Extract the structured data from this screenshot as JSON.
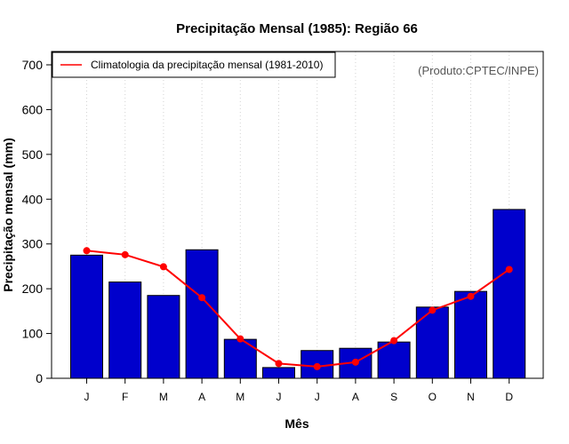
{
  "chart_data": {
    "type": "bar",
    "title": "Precipitação Mensal (1985): Região 66",
    "xlabel": "Mês",
    "ylabel": "Precipitação mensal (mm)",
    "categories": [
      "J",
      "F",
      "M",
      "A",
      "M",
      "J",
      "J",
      "A",
      "S",
      "O",
      "N",
      "D"
    ],
    "ylim": [
      0,
      700
    ],
    "yticks": [
      0,
      100,
      200,
      300,
      400,
      500,
      600,
      700
    ],
    "series": [
      {
        "name": "Precipitação mensal (1985)",
        "type": "bar",
        "color": "#0000cc",
        "values": [
          275,
          215,
          185,
          287,
          87,
          24,
          62,
          67,
          81,
          159,
          194,
          377
        ]
      },
      {
        "name": "Climatologia da precipitação mensal (1981-2010)",
        "type": "line",
        "color": "#ff0000",
        "values": [
          285,
          276,
          249,
          180,
          88,
          33,
          26,
          36,
          84,
          152,
          183,
          243
        ]
      }
    ],
    "legend": {
      "position": "top-left",
      "label": "Climatologia da precipitação mensal (1981-2010)"
    },
    "annotation": "(Produto:CPTEC/INPE)",
    "grid": "vertical-dotted"
  }
}
